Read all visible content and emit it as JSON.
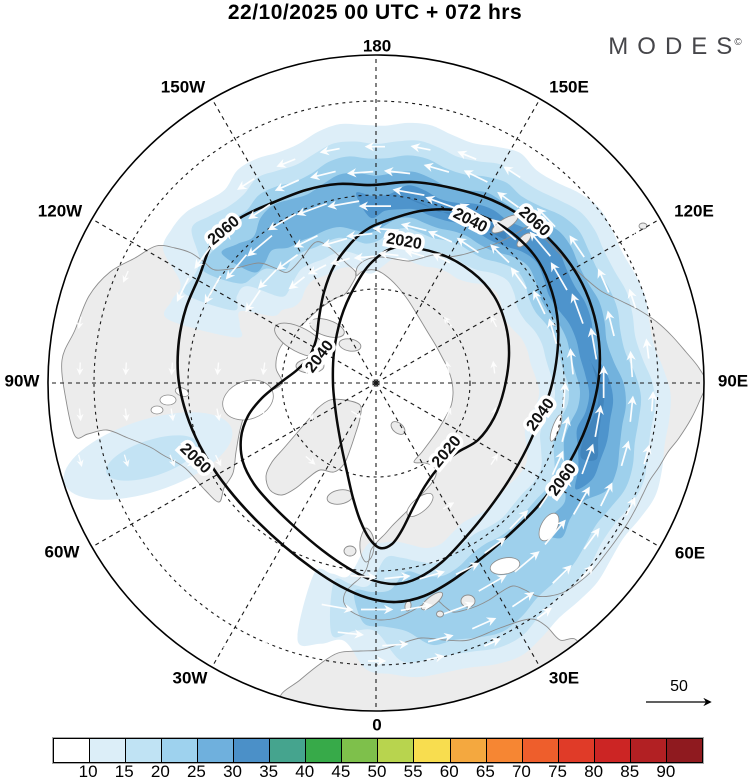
{
  "header": {
    "title": "22/10/2025  00 UTC  + 072 hrs",
    "logo_text": "MODES",
    "logo_sup": "©"
  },
  "chart_data": {
    "type": "map",
    "subtype": "filled-contour-polar-map",
    "projection": "north-polar-stereographic",
    "title": "22/10/2025 00 UTC + 072 hrs",
    "longitude_labels": [
      "180",
      "150W",
      "150E",
      "120W",
      "120E",
      "90W",
      "90E",
      "60W",
      "60E",
      "30W",
      "30E",
      "0"
    ],
    "contour_levels": [
      2020,
      2040,
      2060
    ],
    "contour_label_texts": [
      "2060",
      "2040",
      "2060",
      "2020",
      "2040",
      "2060",
      "2020",
      "2040",
      "2060"
    ],
    "shading_levels": [
      10,
      15,
      20,
      25,
      30,
      35,
      40,
      45,
      50,
      55,
      60,
      65,
      70,
      75,
      80,
      85,
      90
    ],
    "shading_tick_labels": [
      "10",
      "15",
      "20",
      "25",
      "30",
      "35",
      "40",
      "45",
      "50",
      "55",
      "60",
      "65",
      "70",
      "75",
      "80",
      "85",
      "90"
    ],
    "shading_colors": [
      "#ffffff",
      "#dceef8",
      "#c0e3f4",
      "#9ed2ee",
      "#6fb0dd",
      "#4b90c8",
      "#45a48e",
      "#37aa49",
      "#7ec04b",
      "#b8d44e",
      "#f8dd4f",
      "#f4a83f",
      "#f68633",
      "#ee5e2c",
      "#e03b28",
      "#cc2524",
      "#b22023",
      "#8f1a1f"
    ],
    "reference_vector_label": "50",
    "legend_position": "bottom",
    "grid": "dashed-graticule-30deg"
  }
}
